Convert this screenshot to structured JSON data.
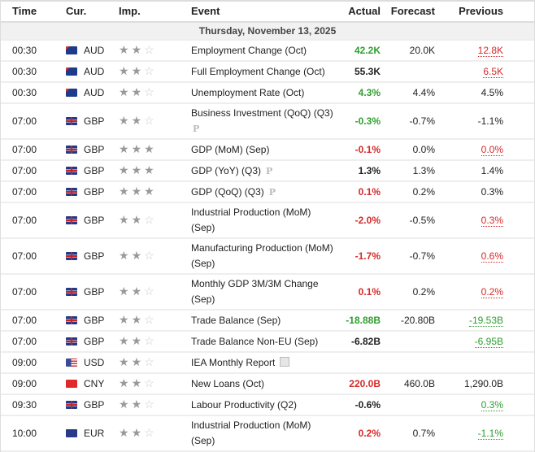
{
  "headers": {
    "time": "Time",
    "cur": "Cur.",
    "imp": "Imp.",
    "event": "Event",
    "actual": "Actual",
    "forecast": "Forecast",
    "previous": "Previous"
  },
  "date": "Thursday, November 13, 2025",
  "colors": {
    "green": "#2e9e2e",
    "red": "#d42a2a",
    "star": "#999999"
  },
  "rows": [
    {
      "time": "00:30",
      "cur": "AUD",
      "flag": "au",
      "stars": 2,
      "event": "Employment Change (Oct)",
      "actual": "42.2K",
      "actual_color": "green",
      "forecast": "20.0K",
      "previous": "12.8K",
      "previous_color": "red",
      "revised": true,
      "lines": 1
    },
    {
      "time": "00:30",
      "cur": "AUD",
      "flag": "au",
      "stars": 2,
      "event": "Full Employment Change (Oct)",
      "actual": "55.3K",
      "actual_color": "black",
      "forecast": "",
      "previous": "6.5K",
      "previous_color": "red",
      "revised": true,
      "lines": 1
    },
    {
      "time": "00:30",
      "cur": "AUD",
      "flag": "au",
      "stars": 2,
      "event": "Unemployment Rate (Oct)",
      "actual": "4.3%",
      "actual_color": "green",
      "forecast": "4.4%",
      "previous": "4.5%",
      "previous_color": "black",
      "lines": 1
    },
    {
      "time": "07:00",
      "cur": "GBP",
      "flag": "gb",
      "stars": 2,
      "event": "Business Investment (QoQ) (Q3)",
      "preliminary": "P",
      "actual": "-0.3%",
      "actual_color": "green",
      "forecast": "-0.7%",
      "previous": "-1.1%",
      "previous_color": "black",
      "lines": 2
    },
    {
      "time": "07:00",
      "cur": "GBP",
      "flag": "gb",
      "stars": 3,
      "event": "GDP (MoM) (Sep)",
      "actual": "-0.1%",
      "actual_color": "red",
      "forecast": "0.0%",
      "previous": "0.0%",
      "previous_color": "red",
      "revised": true,
      "lines": 1
    },
    {
      "time": "07:00",
      "cur": "GBP",
      "flag": "gb",
      "stars": 3,
      "event": "GDP (YoY) (Q3)",
      "preliminary": "P",
      "actual": "1.3%",
      "actual_color": "black",
      "forecast": "1.3%",
      "previous": "1.4%",
      "previous_color": "black",
      "lines": 1
    },
    {
      "time": "07:00",
      "cur": "GBP",
      "flag": "gb",
      "stars": 3,
      "event": "GDP (QoQ) (Q3)",
      "preliminary": "P",
      "actual": "0.1%",
      "actual_color": "red",
      "forecast": "0.2%",
      "previous": "0.3%",
      "previous_color": "black",
      "lines": 1
    },
    {
      "time": "07:00",
      "cur": "GBP",
      "flag": "gb",
      "stars": 2,
      "event": "Industrial Production (MoM) (Sep)",
      "actual": "-2.0%",
      "actual_color": "red",
      "forecast": "-0.5%",
      "previous": "0.3%",
      "previous_color": "red",
      "revised": true,
      "lines": 2
    },
    {
      "time": "07:00",
      "cur": "GBP",
      "flag": "gb",
      "stars": 2,
      "event": "Manufacturing Production (MoM) (Sep)",
      "actual": "-1.7%",
      "actual_color": "red",
      "forecast": "-0.7%",
      "previous": "0.6%",
      "previous_color": "red",
      "revised": true,
      "lines": 2
    },
    {
      "time": "07:00",
      "cur": "GBP",
      "flag": "gb",
      "stars": 2,
      "event": "Monthly GDP 3M/3M Change (Sep)",
      "actual": "0.1%",
      "actual_color": "red",
      "forecast": "0.2%",
      "previous": "0.2%",
      "previous_color": "red",
      "revised": true,
      "lines": 2
    },
    {
      "time": "07:00",
      "cur": "GBP",
      "flag": "gb",
      "stars": 2,
      "event": "Trade Balance (Sep)",
      "actual": "-18.88B",
      "actual_color": "green",
      "forecast": "-20.80B",
      "previous": "-19.53B",
      "previous_color": "green",
      "revised": true,
      "lines": 1
    },
    {
      "time": "07:00",
      "cur": "GBP",
      "flag": "gb",
      "stars": 2,
      "event": "Trade Balance Non-EU (Sep)",
      "actual": "-6.82B",
      "actual_color": "black",
      "forecast": "",
      "previous": "-6.95B",
      "previous_color": "green",
      "revised": true,
      "lines": 1
    },
    {
      "time": "09:00",
      "cur": "USD",
      "flag": "us",
      "stars": 2,
      "event": "IEA Monthly Report",
      "report_icon": true,
      "actual": "",
      "actual_color": "black",
      "forecast": "",
      "previous": "",
      "previous_color": "black",
      "lines": 1
    },
    {
      "time": "09:00",
      "cur": "CNY",
      "flag": "cn",
      "stars": 2,
      "event": "New Loans (Oct)",
      "actual": "220.0B",
      "actual_color": "red",
      "forecast": "460.0B",
      "previous": "1,290.0B",
      "previous_color": "black",
      "lines": 1
    },
    {
      "time": "09:30",
      "cur": "GBP",
      "flag": "gb",
      "stars": 2,
      "event": "Labour Productivity (Q2)",
      "actual": "-0.6%",
      "actual_color": "black",
      "forecast": "",
      "previous": "0.3%",
      "previous_color": "green",
      "revised": true,
      "lines": 1
    },
    {
      "time": "10:00",
      "cur": "EUR",
      "flag": "eu",
      "stars": 2,
      "event": "Industrial Production (MoM) (Sep)",
      "actual": "0.2%",
      "actual_color": "red",
      "forecast": "0.7%",
      "previous": "-1.1%",
      "previous_color": "green",
      "revised": true,
      "lines": 2
    }
  ]
}
